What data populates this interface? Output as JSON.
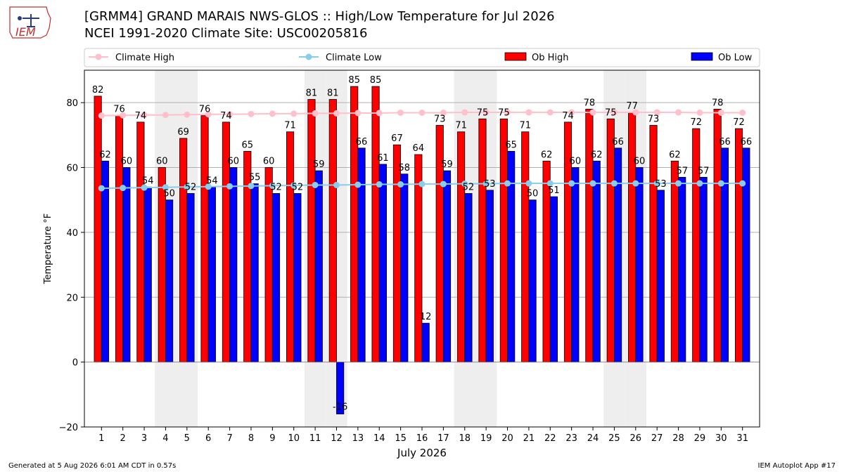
{
  "header": {
    "title_line1": "[GRMM4] GRAND MARAIS NWS-GLOS :: High/Low Temperature for Jul 2026",
    "title_line2": "NCEI 1991-2020 Climate Site: USC00205816",
    "logo_text": "IEM"
  },
  "footer": {
    "generated": "Generated at 5 Aug 2026 6:01 AM CDT in 0.57s",
    "app": "IEM Autoplot App #17"
  },
  "colors": {
    "ob_high": "#ff0000",
    "ob_low": "#0000ff",
    "climate_high": "#ffc0cb",
    "climate_low": "#87ceeb",
    "weekend_shade": "#eeeeee",
    "grid": "#b0b0b0"
  },
  "chart_data": {
    "type": "bar",
    "xlabel": "July 2026",
    "ylabel": "Temperature °F",
    "ylim": [
      -20,
      90
    ],
    "yticks": [
      -20,
      0,
      20,
      40,
      60,
      80
    ],
    "grid": true,
    "legend_position": "top",
    "categories": [
      1,
      2,
      3,
      4,
      5,
      6,
      7,
      8,
      9,
      10,
      11,
      12,
      13,
      14,
      15,
      16,
      17,
      18,
      19,
      20,
      21,
      22,
      23,
      24,
      25,
      26,
      27,
      28,
      29,
      30,
      31
    ],
    "shaded_days": [
      4,
      5,
      11,
      12,
      18,
      19,
      25,
      26
    ],
    "series": [
      {
        "name": "Climate High",
        "kind": "line",
        "values": [
          76.0,
          76.1,
          76.2,
          76.2,
          76.3,
          76.4,
          76.4,
          76.5,
          76.6,
          76.6,
          76.7,
          76.7,
          76.8,
          76.8,
          76.9,
          76.9,
          76.9,
          77.0,
          77.0,
          77.0,
          77.0,
          77.0,
          77.0,
          77.0,
          77.0,
          77.0,
          77.0,
          77.0,
          76.9,
          76.9,
          76.9
        ]
      },
      {
        "name": "Climate Low",
        "kind": "line",
        "values": [
          53.6,
          53.7,
          53.8,
          53.9,
          54.0,
          54.1,
          54.2,
          54.3,
          54.4,
          54.5,
          54.6,
          54.6,
          54.7,
          54.8,
          54.8,
          54.9,
          54.9,
          55.0,
          55.0,
          55.1,
          55.1,
          55.1,
          55.1,
          55.1,
          55.1,
          55.1,
          55.1,
          55.1,
          55.1,
          55.1,
          55.1
        ]
      },
      {
        "name": "Ob High",
        "kind": "bar",
        "values": [
          82,
          76,
          74,
          60,
          69,
          76,
          74,
          65,
          60,
          71,
          81,
          81,
          85,
          85,
          67,
          64,
          73,
          71,
          75,
          75,
          71,
          62,
          74,
          78,
          75,
          77,
          73,
          62,
          72,
          78,
          72
        ]
      },
      {
        "name": "Ob Low",
        "kind": "bar",
        "values": [
          62,
          60,
          54,
          50,
          52,
          54,
          60,
          55,
          52,
          52,
          59,
          -16,
          66,
          61,
          58,
          12,
          59,
          52,
          53,
          65,
          50,
          51,
          60,
          62,
          66,
          60,
          53,
          57,
          57,
          66,
          66
        ]
      }
    ]
  }
}
